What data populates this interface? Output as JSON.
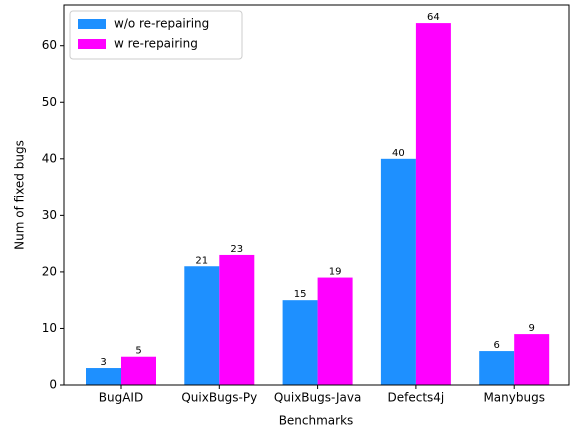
{
  "chart_data": {
    "type": "bar",
    "xlabel": "Benchmarks",
    "ylabel": "Num of fixed bugs",
    "categories": [
      "BugAID",
      "QuixBugs-Py",
      "QuixBugs-Java",
      "Defects4j",
      "Manybugs"
    ],
    "series": [
      {
        "name": "w/o re-repairing",
        "color": "#1e90ff",
        "values": [
          3,
          21,
          15,
          40,
          6
        ]
      },
      {
        "name": "w re-repairing",
        "color": "#ff00ff",
        "values": [
          5,
          23,
          19,
          64,
          9
        ]
      }
    ],
    "ylim": [
      0,
      67.2
    ],
    "yticks": [
      0,
      10,
      20,
      30,
      40,
      50,
      60
    ],
    "legend": "upper left",
    "grid": false
  }
}
